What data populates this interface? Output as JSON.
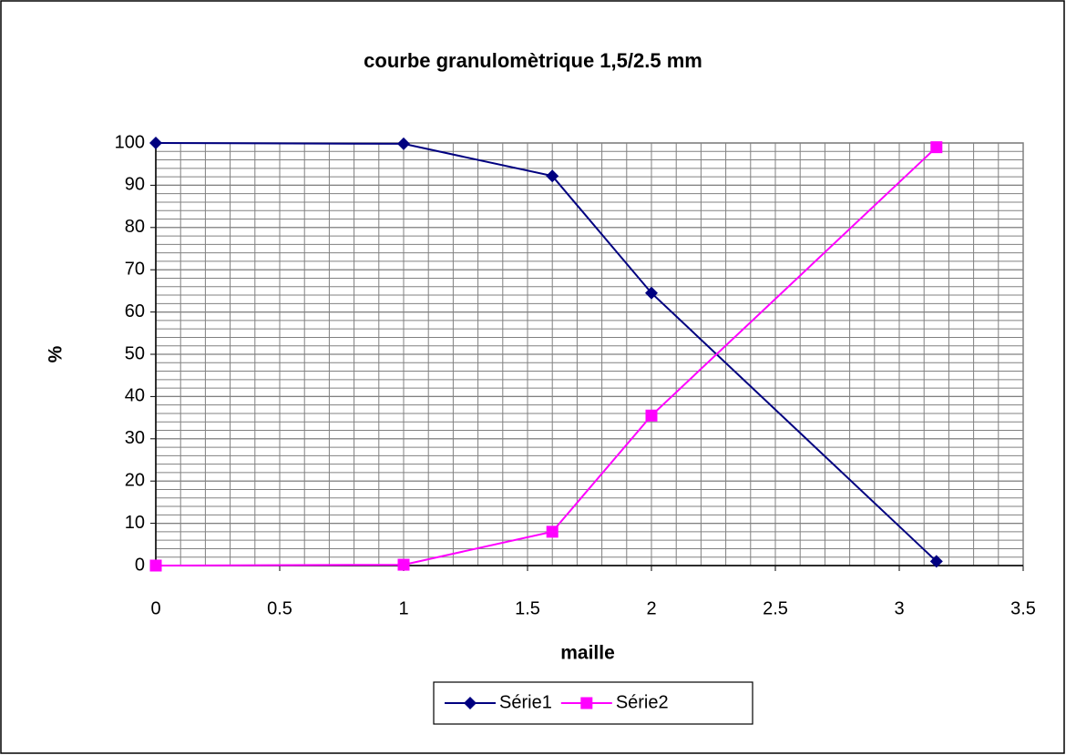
{
  "chart_data": {
    "type": "line",
    "title": "courbe granulomètrique 1,5/2.5 mm",
    "x_label": "maille",
    "y_label": "%",
    "series": [
      {
        "name": "Série1",
        "color": "#000080",
        "marker": "diamond",
        "x": [
          0,
          1,
          1.6,
          2,
          3.15
        ],
        "values": [
          100,
          99.8,
          92.2,
          64.5,
          1
        ]
      },
      {
        "name": "Série2",
        "color": "#ff00ff",
        "marker": "square",
        "x": [
          0,
          1,
          1.6,
          2,
          3.15
        ],
        "values": [
          0,
          0.2,
          8,
          35.5,
          99
        ]
      }
    ],
    "xlim": [
      0,
      3.5
    ],
    "xticks": [
      0,
      0.5,
      1,
      1.5,
      2,
      2.5,
      3,
      3.5
    ],
    "ylim": [
      0,
      100
    ],
    "yticks": [
      0,
      10,
      20,
      30,
      40,
      50,
      60,
      70,
      80,
      90,
      100
    ],
    "grid": true,
    "x_minor_step": 0.1,
    "y_minor_step": 2,
    "legend": "bottom"
  }
}
